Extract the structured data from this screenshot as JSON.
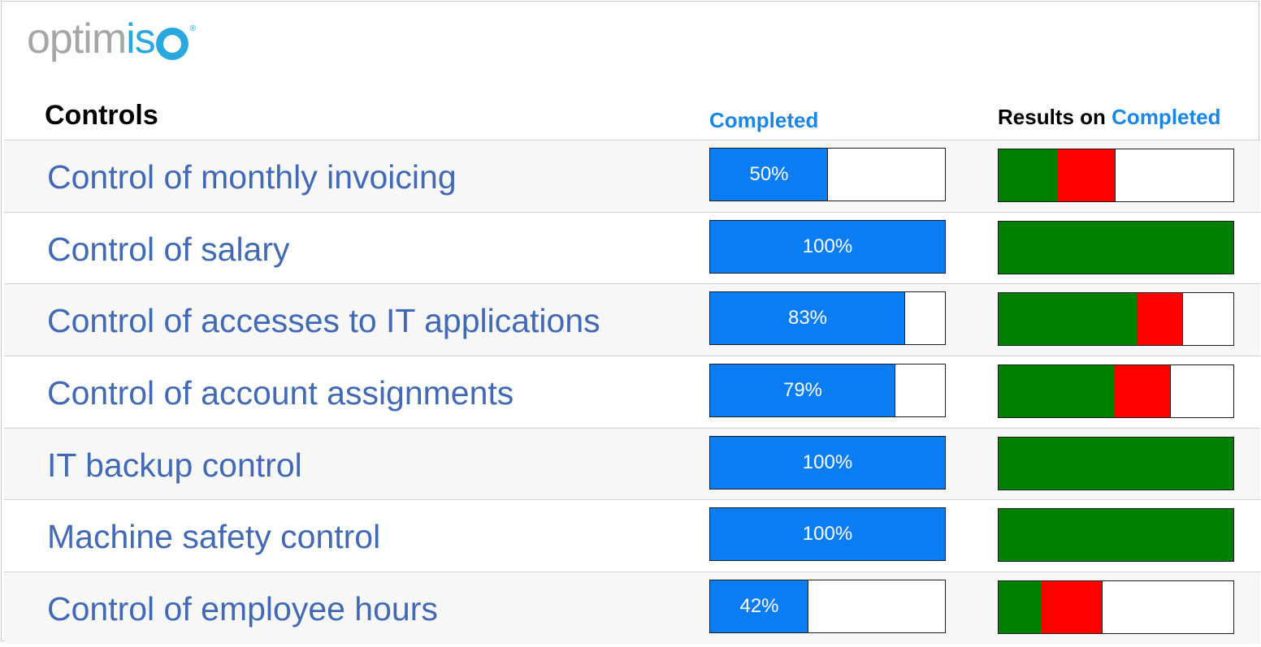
{
  "logo": {
    "text_grey": "optim",
    "text_blue": "is",
    "reg": "®"
  },
  "headers": {
    "controls": "Controls",
    "completed": "Completed",
    "results_prefix": "Results on",
    "results_highlight": "Completed"
  },
  "colors": {
    "label_text": "#4169b5",
    "completed_fill": "#0a7df5",
    "result_ok": "#008000",
    "result_fail": "#ff0000",
    "logo_blue": "#29a8e0",
    "logo_grey": "#a6a6a6"
  },
  "rows": [
    {
      "label": "Control of monthly invoicing",
      "completed": 50,
      "completed_label": "50%",
      "results": {
        "ok": 25,
        "fail": 25
      }
    },
    {
      "label": "Control of salary",
      "completed": 100,
      "completed_label": "100%",
      "results": {
        "ok": 100,
        "fail": 0
      }
    },
    {
      "label": "Control of accesses to IT applications",
      "completed": 83,
      "completed_label": "83%",
      "results": {
        "ok": 59,
        "fail": 19.5
      }
    },
    {
      "label": "Control of account assignments",
      "completed": 79,
      "completed_label": "79%",
      "results": {
        "ok": 49.5,
        "fail": 24
      }
    },
    {
      "label": "IT backup control",
      "completed": 100,
      "completed_label": "100%",
      "results": {
        "ok": 100,
        "fail": 0
      }
    },
    {
      "label": "Machine safety control",
      "completed": 100,
      "completed_label": "100%",
      "results": {
        "ok": 100,
        "fail": 0
      }
    },
    {
      "label": "Control of employee hours",
      "completed": 42,
      "completed_label": "42%",
      "results": {
        "ok": 18.5,
        "fail": 26
      }
    }
  ]
}
